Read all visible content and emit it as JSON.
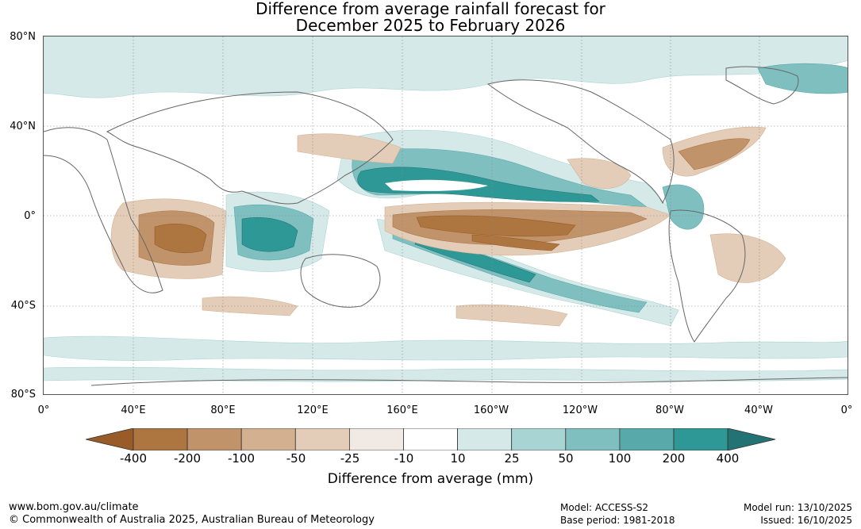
{
  "title_line1": "Difference from average rainfall forecast for",
  "title_line2": "December 2025 to February 2026",
  "lat_labels": [
    "80°N",
    "40°N",
    "0°",
    "40°S",
    "80°S"
  ],
  "lon_labels": [
    "0°",
    "40°E",
    "80°E",
    "120°E",
    "160°E",
    "160°W",
    "120°W",
    "80°W",
    "40°W",
    "0°"
  ],
  "colorbar": {
    "labels": [
      "-400",
      "-200",
      "-100",
      "-50",
      "-25",
      "-10",
      "10",
      "25",
      "50",
      "100",
      "200",
      "400"
    ],
    "colors": [
      "#995b28",
      "#ad7540",
      "#c1936a",
      "#d3b08f",
      "#e4cdb8",
      "#f0e9e4",
      "#ffffff",
      "#d5e9e8",
      "#a9d4d4",
      "#80bfc0",
      "#57a9aa",
      "#2e9897",
      "#237374"
    ],
    "title": "Difference from average (mm)"
  },
  "footer": {
    "website": "www.bom.gov.au/climate",
    "copyright": "© Commonwealth of Australia 2025, Australian Bureau of Meteorology",
    "model": "Model: ACCESS-S2",
    "base_period": "Base period: 1981-2018",
    "model_run": "Model run: 13/10/2025",
    "issued": "Issued: 16/10/2025"
  },
  "map_layers": {
    "dry_color_strong": "#ad7540",
    "dry_color_mid": "#c1936a",
    "dry_color_light": "#e4cdb8",
    "wet_color_strong": "#2e9897",
    "wet_color_mid": "#80bfc0",
    "wet_color_light": "#d5e9e8"
  }
}
